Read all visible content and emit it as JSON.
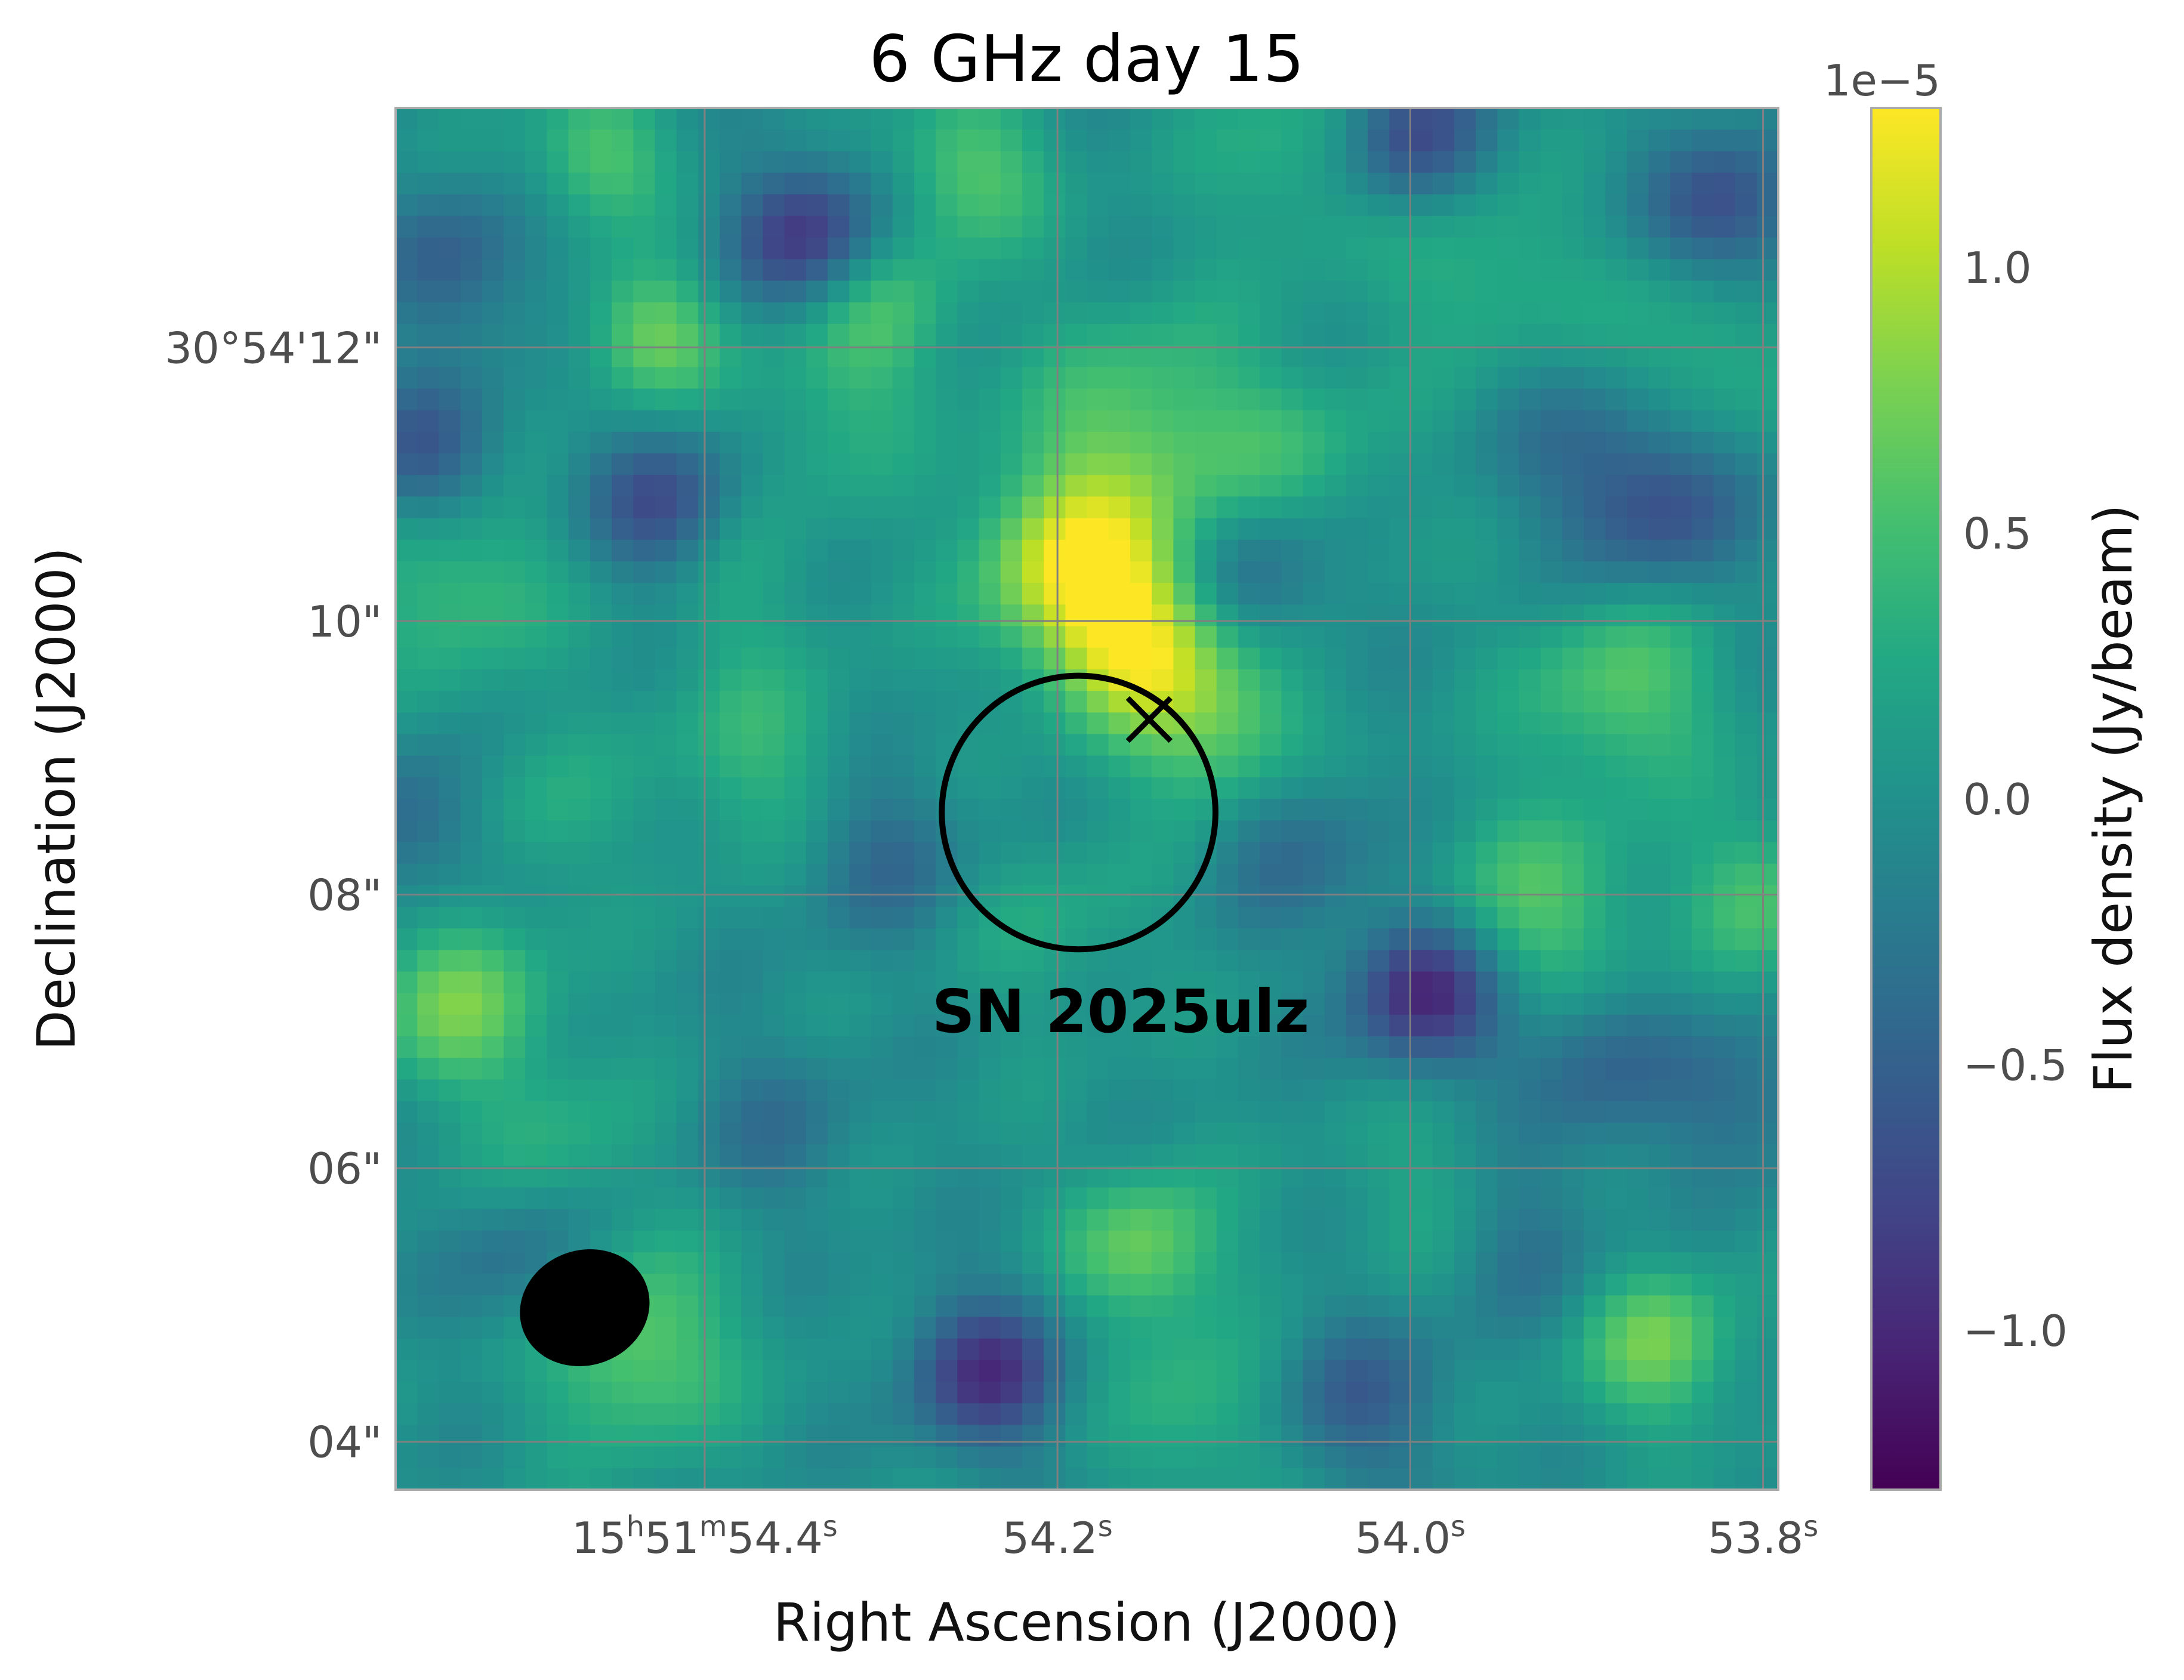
{
  "chart_data": {
    "type": "heatmap",
    "title": "6 GHz day 15",
    "xlabel": "Right Ascension (J2000)",
    "ylabel": "Declination (J2000)",
    "x_ticks": [
      {
        "ra_sec": 54.4,
        "main": "15",
        "sup1": "h",
        "mid": "51",
        "sup2": "m",
        "main2": "54.4",
        "sup3": "s"
      },
      {
        "ra_sec": 54.2,
        "main": "54.2",
        "sup1": "s"
      },
      {
        "ra_sec": 54.0,
        "main": "54.0",
        "sup1": "s"
      },
      {
        "ra_sec": 53.8,
        "main": "53.8",
        "sup1": "s"
      }
    ],
    "x_range_ra_sec": [
      54.5752,
      53.7914
    ],
    "y_range_dec_arcsec": [
      3.65,
      13.75
    ],
    "y_ticks": [
      {
        "dec_arcsec": 12,
        "label": "30°54'12\""
      },
      {
        "dec_arcsec": 10,
        "label": "10\""
      },
      {
        "dec_arcsec": 8,
        "label": "08\""
      },
      {
        "dec_arcsec": 6,
        "label": "06\""
      },
      {
        "dec_arcsec": 4,
        "label": "04\""
      }
    ],
    "colorbar": {
      "label": "Flux density (Jy/beam)",
      "offset_text": "1e−5",
      "range": [
        -1.3,
        1.3
      ],
      "ticks": [
        {
          "value": 1.0,
          "label": "1.0"
        },
        {
          "value": 0.5,
          "label": "0.5"
        },
        {
          "value": 0.0,
          "label": "0.0"
        },
        {
          "value": -0.5,
          "label": "−0.5"
        },
        {
          "value": -1.0,
          "label": "−1.0"
        }
      ],
      "colormap": "viridis"
    },
    "grid": true,
    "annotations": {
      "label": "SN 2025ulz",
      "circle": {
        "ra_sec": 54.188,
        "dec_arcsec": 8.6,
        "radius_arcsec": 1.0
      },
      "cross": {
        "ra_sec": 54.148,
        "dec_arcsec": 9.28
      },
      "beam": {
        "ra_sec": 54.468,
        "dec_arcsec": 4.98,
        "major_arcsec": 0.96,
        "minor_arcsec": 0.84,
        "pa_deg": 70
      }
    },
    "sources": [
      {
        "ra_sec": 54.19,
        "dec_arcsec": 10.4,
        "peak": 1.1,
        "sigma_arcsec": 0.5
      },
      {
        "ra_sec": 54.15,
        "dec_arcsec": 9.8,
        "peak": 1.0,
        "sigma_arcsec": 0.45
      },
      {
        "ra_sec": 54.1,
        "dec_arcsec": 9.1,
        "peak": 0.7,
        "sigma_arcsec": 0.45
      },
      {
        "ra_sec": 54.15,
        "dec_arcsec": 11.4,
        "peak": 0.6,
        "sigma_arcsec": 0.6
      },
      {
        "ra_sec": 54.43,
        "dec_arcsec": 12.1,
        "peak": 0.7,
        "sigma_arcsec": 0.35
      },
      {
        "ra_sec": 54.46,
        "dec_arcsec": 13.4,
        "peak": 0.6,
        "sigma_arcsec": 0.35
      },
      {
        "ra_sec": 54.25,
        "dec_arcsec": 13.3,
        "peak": 0.6,
        "sigma_arcsec": 0.4
      },
      {
        "ra_sec": 54.3,
        "dec_arcsec": 12.3,
        "peak": 0.5,
        "sigma_arcsec": 0.4
      },
      {
        "ra_sec": 54.54,
        "dec_arcsec": 10.3,
        "peak": 0.5,
        "sigma_arcsec": 0.5
      },
      {
        "ra_sec": 54.54,
        "dec_arcsec": 7.2,
        "peak": 0.7,
        "sigma_arcsec": 0.45
      },
      {
        "ra_sec": 54.44,
        "dec_arcsec": 4.7,
        "peak": 0.7,
        "sigma_arcsec": 0.5
      },
      {
        "ra_sec": 54.15,
        "dec_arcsec": 5.4,
        "peak": 0.7,
        "sigma_arcsec": 0.4
      },
      {
        "ra_sec": 53.86,
        "dec_arcsec": 4.7,
        "peak": 0.7,
        "sigma_arcsec": 0.4
      },
      {
        "ra_sec": 53.88,
        "dec_arcsec": 9.5,
        "peak": 0.6,
        "sigma_arcsec": 0.5
      },
      {
        "ra_sec": 53.93,
        "dec_arcsec": 7.8,
        "peak": 0.6,
        "sigma_arcsec": 0.55
      },
      {
        "ra_sec": 53.8,
        "dec_arcsec": 8.0,
        "peak": 0.5,
        "sigma_arcsec": 0.4
      },
      {
        "ra_sec": 53.96,
        "dec_arcsec": 12.6,
        "peak": 0.4,
        "sigma_arcsec": 0.5
      },
      {
        "ra_sec": 54.06,
        "dec_arcsec": 13.4,
        "peak": 0.4,
        "sigma_arcsec": 0.5
      },
      {
        "ra_sec": 54.37,
        "dec_arcsec": 9.0,
        "peak": 0.4,
        "sigma_arcsec": 0.5
      },
      {
        "ra_sec": 54.48,
        "dec_arcsec": 6.2,
        "peak": 0.3,
        "sigma_arcsec": 0.45
      },
      {
        "ra_sec": 54.12,
        "dec_arcsec": 4.2,
        "peak": 0.4,
        "sigma_arcsec": 0.45
      },
      {
        "ra_sec": 54.06,
        "dec_arcsec": 11.2,
        "peak": 0.3,
        "sigma_arcsec": 0.5
      },
      {
        "ra_sec": 54.2,
        "dec_arcsec": 7.8,
        "peak": 0.25,
        "sigma_arcsec": 0.5
      },
      {
        "ra_sec": 53.98,
        "dec_arcsec": 5.8,
        "peak": 0.3,
        "sigma_arcsec": 0.5
      },
      {
        "ra_sec": 54.33,
        "dec_arcsec": 11.6,
        "peak": 0.3,
        "sigma_arcsec": 0.5
      },
      {
        "ra_sec": 53.84,
        "dec_arcsec": 12.0,
        "peak": 0.4,
        "sigma_arcsec": 0.45
      },
      {
        "ra_sec": 54.5,
        "dec_arcsec": 8.6,
        "peak": 0.3,
        "sigma_arcsec": 0.45
      },
      {
        "ra_sec": 54.39,
        "dec_arcsec": 10.4,
        "peak": 0.35,
        "sigma_arcsec": 0.45
      },
      {
        "ra_sec": 54.34,
        "dec_arcsec": 12.8,
        "peak": -0.9,
        "sigma_arcsec": 0.4
      },
      {
        "ra_sec": 53.99,
        "dec_arcsec": 7.3,
        "peak": -1.1,
        "sigma_arcsec": 0.4
      },
      {
        "ra_sec": 54.24,
        "dec_arcsec": 4.5,
        "peak": -0.9,
        "sigma_arcsec": 0.4
      },
      {
        "ra_sec": 54.42,
        "dec_arcsec": 10.8,
        "peak": -0.8,
        "sigma_arcsec": 0.4
      },
      {
        "ra_sec": 54.0,
        "dec_arcsec": 13.5,
        "peak": -0.8,
        "sigma_arcsec": 0.4
      },
      {
        "ra_sec": 53.82,
        "dec_arcsec": 13.0,
        "peak": -0.7,
        "sigma_arcsec": 0.4
      },
      {
        "ra_sec": 53.86,
        "dec_arcsec": 10.8,
        "peak": -0.6,
        "sigma_arcsec": 0.45
      },
      {
        "ra_sec": 54.54,
        "dec_arcsec": 12.6,
        "peak": -0.5,
        "sigma_arcsec": 0.4
      },
      {
        "ra_sec": 54.56,
        "dec_arcsec": 11.2,
        "peak": -0.6,
        "sigma_arcsec": 0.4
      },
      {
        "ra_sec": 54.07,
        "dec_arcsec": 8.5,
        "peak": -0.5,
        "sigma_arcsec": 0.45
      },
      {
        "ra_sec": 54.09,
        "dec_arcsec": 10.3,
        "peak": -0.5,
        "sigma_arcsec": 0.4
      },
      {
        "ra_sec": 54.03,
        "dec_arcsec": 4.3,
        "peak": -0.5,
        "sigma_arcsec": 0.45
      },
      {
        "ra_sec": 53.9,
        "dec_arcsec": 6.8,
        "peak": -0.5,
        "sigma_arcsec": 0.45
      },
      {
        "ra_sec": 54.56,
        "dec_arcsec": 8.5,
        "peak": -0.5,
        "sigma_arcsec": 0.4
      },
      {
        "ra_sec": 54.3,
        "dec_arcsec": 8.3,
        "peak": -0.4,
        "sigma_arcsec": 0.45
      },
      {
        "ra_sec": 54.5,
        "dec_arcsec": 5.3,
        "peak": -0.4,
        "sigma_arcsec": 0.4
      },
      {
        "ra_sec": 53.94,
        "dec_arcsec": 5.5,
        "peak": -0.4,
        "sigma_arcsec": 0.45
      },
      {
        "ra_sec": 53.81,
        "dec_arcsec": 6.5,
        "peak": -0.4,
        "sigma_arcsec": 0.4
      },
      {
        "ra_sec": 54.36,
        "dec_arcsec": 6.3,
        "peak": -0.3,
        "sigma_arcsec": 0.45
      },
      {
        "ra_sec": 53.9,
        "dec_arcsec": 11.3,
        "peak": -0.3,
        "sigma_arcsec": 0.45
      }
    ]
  }
}
